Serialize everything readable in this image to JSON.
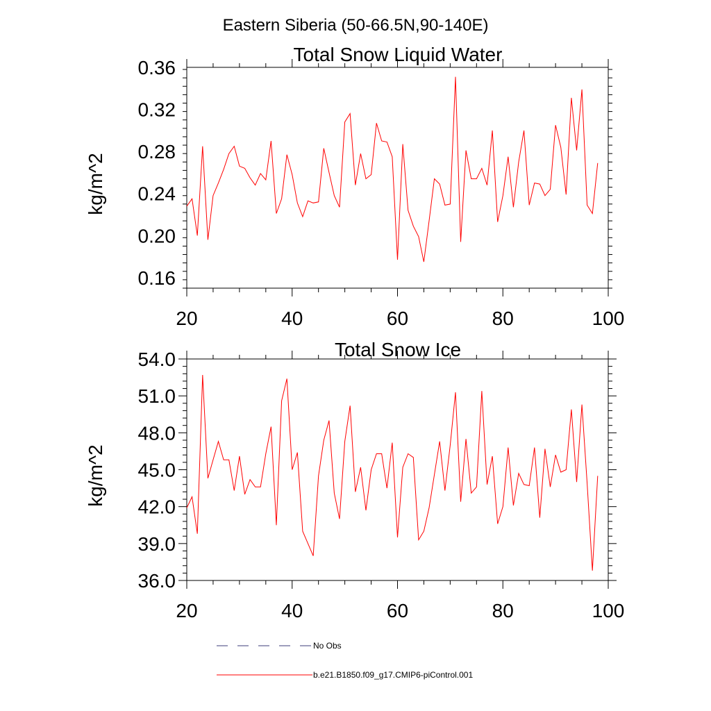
{
  "figure_title": "Eastern Siberia (50-66.5N,90-140E)",
  "colors": {
    "model_line": "#ff0000",
    "obs_line": "#3b3b7a",
    "frame": "#000000"
  },
  "legend": [
    {
      "label": "No Obs",
      "style": "dashed",
      "color": "#3b3b7a"
    },
    {
      "label": "b.e21.B1850.f09_g17.CMIP6-piControl.001",
      "style": "solid",
      "color": "#ff0000"
    }
  ],
  "chart_data": [
    {
      "type": "line",
      "title": "Total Snow Liquid Water",
      "xlabel": "",
      "ylabel": "kg/m^2",
      "xlim": [
        20,
        100
      ],
      "ylim": [
        0.15,
        0.36
      ],
      "xticks": [
        20,
        40,
        60,
        80,
        100
      ],
      "xtick_labels": [
        "20",
        "40",
        "60",
        "80",
        "100"
      ],
      "yticks": [
        0.16,
        0.2,
        0.24,
        0.28,
        0.32,
        0.36
      ],
      "ytick_labels": [
        "0.16",
        "0.20",
        "0.24",
        "0.28",
        "0.32",
        "0.36"
      ],
      "x_start": 20,
      "x_step": 1,
      "series": [
        {
          "name": "b.e21.B1850.f09_g17.CMIP6-piControl.001",
          "values": [
            0.228,
            0.235,
            0.2,
            0.285,
            0.196,
            0.238,
            0.25,
            0.263,
            0.278,
            0.285,
            0.266,
            0.264,
            0.255,
            0.248,
            0.259,
            0.253,
            0.29,
            0.221,
            0.235,
            0.277,
            0.258,
            0.231,
            0.218,
            0.233,
            0.231,
            0.232,
            0.283,
            0.26,
            0.238,
            0.227,
            0.308,
            0.316,
            0.248,
            0.278,
            0.254,
            0.258,
            0.307,
            0.29,
            0.289,
            0.275,
            0.177,
            0.287,
            0.224,
            0.209,
            0.199,
            0.175,
            0.214,
            0.254,
            0.249,
            0.229,
            0.23,
            0.351,
            0.194,
            0.281,
            0.254,
            0.254,
            0.264,
            0.248,
            0.3,
            0.213,
            0.238,
            0.275,
            0.227,
            0.27,
            0.3,
            0.229,
            0.25,
            0.249,
            0.238,
            0.244,
            0.305,
            0.284,
            0.239,
            0.331,
            0.281,
            0.339,
            0.229,
            0.221,
            0.269
          ]
        }
      ]
    },
    {
      "type": "line",
      "title": "Total Snow Ice",
      "xlabel": "",
      "ylabel": "kg/m^2",
      "xlim": [
        20,
        100
      ],
      "ylim": [
        36.0,
        54.0
      ],
      "xticks": [
        20,
        40,
        60,
        80,
        100
      ],
      "xtick_labels": [
        "20",
        "40",
        "60",
        "80",
        "100"
      ],
      "yticks": [
        36.0,
        39.0,
        42.0,
        45.0,
        48.0,
        51.0,
        54.0
      ],
      "ytick_labels": [
        "36.0",
        "39.0",
        "42.0",
        "45.0",
        "48.0",
        "51.0",
        "54.0"
      ],
      "x_start": 20,
      "x_step": 1,
      "series": [
        {
          "name": "b.e21.B1850.f09_g17.CMIP6-piControl.001",
          "values": [
            41.9,
            42.8,
            39.8,
            52.7,
            44.3,
            45.8,
            47.3,
            45.8,
            45.8,
            43.3,
            46.1,
            43.0,
            44.2,
            43.6,
            43.6,
            46.3,
            48.5,
            40.5,
            50.6,
            52.4,
            45.0,
            46.4,
            40.0,
            39.0,
            38.0,
            44.5,
            47.4,
            49.0,
            43.1,
            41.0,
            47.3,
            50.2,
            43.2,
            45.2,
            41.7,
            45.0,
            46.3,
            46.3,
            43.5,
            47.2,
            39.5,
            45.2,
            46.3,
            46.0,
            39.3,
            40.0,
            41.9,
            44.6,
            47.3,
            43.3,
            47.0,
            51.3,
            42.4,
            47.5,
            43.1,
            43.6,
            51.4,
            43.8,
            46.1,
            40.6,
            42.0,
            46.8,
            42.1,
            44.7,
            43.8,
            43.7,
            46.8,
            41.1,
            46.7,
            43.6,
            46.2,
            44.8,
            45.0,
            49.9,
            44.0,
            50.3,
            43.9,
            36.8,
            44.5
          ]
        }
      ]
    }
  ]
}
